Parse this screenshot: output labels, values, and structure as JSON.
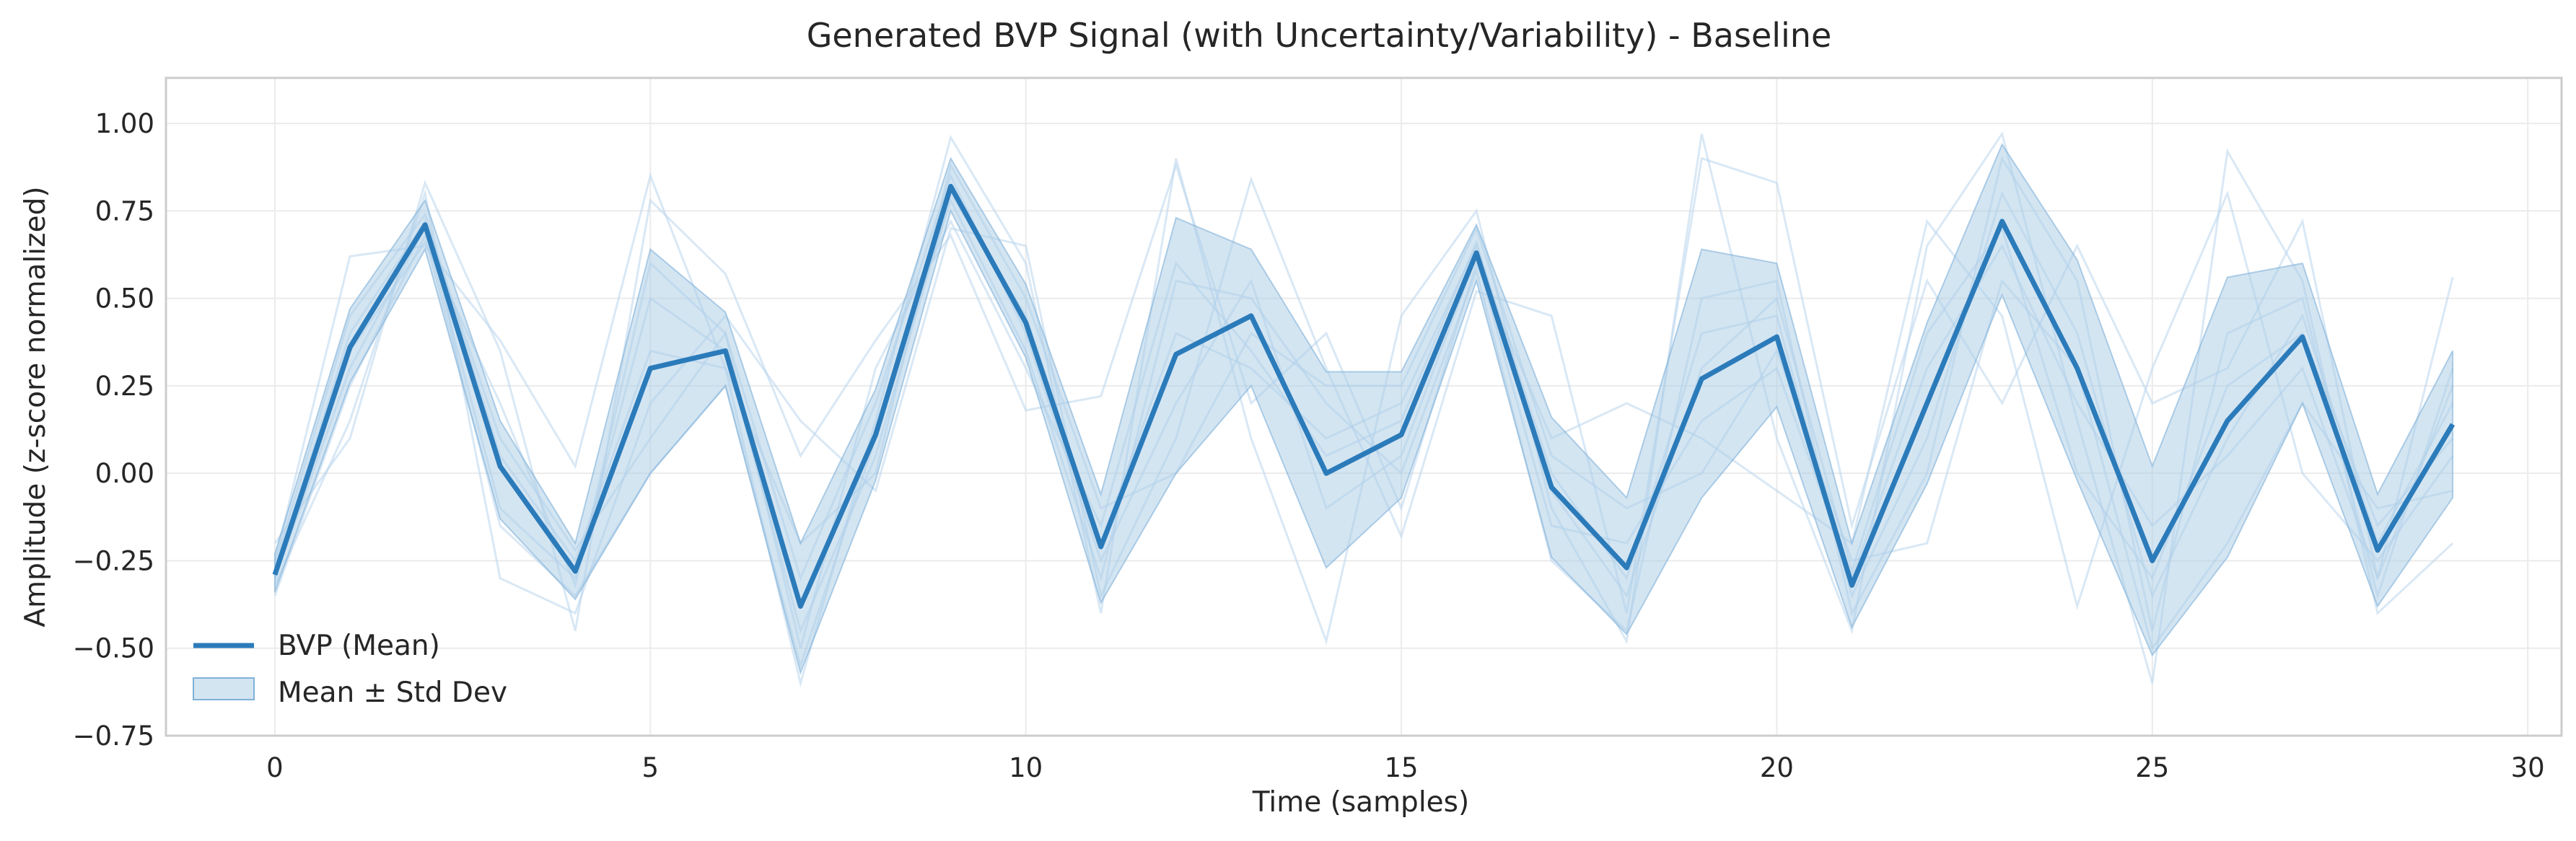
{
  "chart_data": {
    "type": "line",
    "title": "Generated BVP Signal (with Uncertainty/Variability) - Baseline",
    "xlabel": "Time (samples)",
    "ylabel": "Amplitude (z-score normalized)",
    "xlim": [
      -1.45,
      30.45
    ],
    "ylim": [
      -0.75,
      1.13
    ],
    "x_ticks": [
      0,
      5,
      10,
      15,
      20,
      25,
      30
    ],
    "x_tick_labels": [
      "0",
      "5",
      "10",
      "15",
      "20",
      "25",
      "30"
    ],
    "y_ticks": [
      -0.75,
      -0.5,
      -0.25,
      0.0,
      0.25,
      0.5,
      0.75,
      1.0
    ],
    "y_tick_labels": [
      "−0.75",
      "−0.50",
      "−0.25",
      "0.00",
      "0.25",
      "0.50",
      "0.75",
      "1.00"
    ],
    "grid": true,
    "legend_position": "lower-left",
    "colors": {
      "mean": "#2b7bba",
      "band": "#a9cbe6",
      "samples": "#b9d6ec",
      "axis": "#cccccc",
      "grid": "#ebebeb"
    },
    "x": [
      0,
      1,
      2,
      3,
      4,
      5,
      6,
      7,
      8,
      9,
      10,
      11,
      12,
      13,
      14,
      15,
      16,
      17,
      18,
      19,
      20,
      21,
      22,
      23,
      24,
      25,
      26,
      27,
      28,
      29
    ],
    "mean": {
      "name": "BVP (Mean)",
      "values": [
        -0.29,
        0.36,
        0.71,
        0.02,
        -0.28,
        0.3,
        0.35,
        -0.38,
        0.11,
        0.82,
        0.43,
        -0.21,
        0.34,
        0.45,
        0.0,
        0.11,
        0.63,
        -0.04,
        -0.27,
        0.27,
        0.39,
        -0.32,
        0.2,
        0.72,
        0.3,
        -0.25,
        0.15,
        0.39,
        -0.22,
        0.14
      ]
    },
    "band": {
      "name": "Mean ± Std Dev",
      "lower": [
        -0.34,
        0.26,
        0.64,
        -0.13,
        -0.36,
        0.0,
        0.25,
        -0.57,
        -0.02,
        0.75,
        0.33,
        -0.37,
        0.0,
        0.25,
        -0.27,
        -0.07,
        0.55,
        -0.24,
        -0.46,
        -0.07,
        0.19,
        -0.44,
        -0.03,
        0.51,
        -0.02,
        -0.52,
        -0.24,
        0.2,
        -0.38,
        -0.07
      ],
      "upper": [
        -0.23,
        0.47,
        0.78,
        0.15,
        -0.2,
        0.64,
        0.46,
        -0.2,
        0.24,
        0.9,
        0.54,
        -0.06,
        0.73,
        0.64,
        0.29,
        0.29,
        0.71,
        0.16,
        -0.07,
        0.64,
        0.6,
        -0.2,
        0.43,
        0.94,
        0.61,
        0.02,
        0.56,
        0.6,
        -0.06,
        0.35
      ]
    },
    "samples": [
      [
        -0.25,
        0.62,
        0.65,
        0.38,
        0.02,
        0.85,
        0.3,
        -0.6,
        0.15,
        0.96,
        0.6,
        -0.4,
        0.9,
        0.1,
        -0.48,
        0.45,
        0.75,
        -0.1,
        -0.48,
        0.97,
        0.1,
        -0.45,
        0.65,
        0.97,
        0.15,
        -0.6,
        0.92,
        0.55,
        -0.4,
        -0.2
      ],
      [
        -0.32,
        0.15,
        0.8,
        -0.3,
        -0.4,
        0.2,
        0.45,
        0.15,
        -0.05,
        0.7,
        0.65,
        -0.35,
        0.1,
        0.84,
        0.3,
        -0.18,
        0.52,
        0.45,
        -0.4,
        0.9,
        0.83,
        -0.15,
        0.55,
        0.2,
        0.65,
        0.2,
        0.3,
        0.72,
        -0.3,
        0.56
      ],
      [
        -0.2,
        0.1,
        0.83,
        0.35,
        -0.45,
        0.78,
        0.57,
        0.05,
        0.38,
        0.68,
        0.18,
        0.22,
        0.88,
        0.2,
        0.4,
        -0.1,
        0.6,
        0.1,
        0.2,
        0.1,
        -0.05,
        -0.2,
        0.72,
        0.45,
        -0.38,
        0.3,
        0.8,
        0.0,
        -0.25,
        0.05
      ],
      [
        -0.3,
        0.3,
        0.7,
        -0.1,
        -0.3,
        0.5,
        0.35,
        -0.45,
        0.05,
        0.8,
        0.45,
        -0.2,
        0.4,
        0.3,
        0.1,
        0.2,
        0.65,
        0.0,
        -0.3,
        0.4,
        0.45,
        -0.35,
        0.1,
        0.8,
        0.4,
        -0.35,
        0.1,
        0.45,
        -0.2,
        0.2
      ],
      [
        -0.28,
        0.4,
        0.72,
        0.1,
        -0.22,
        0.1,
        0.4,
        -0.3,
        0.2,
        0.85,
        0.4,
        -0.25,
        0.2,
        0.55,
        -0.1,
        0.05,
        0.62,
        -0.15,
        -0.2,
        0.15,
        0.3,
        -0.3,
        0.3,
        0.65,
        0.2,
        -0.15,
        0.05,
        0.3,
        -0.3,
        0.25
      ],
      [
        -0.35,
        0.25,
        0.68,
        -0.15,
        -0.35,
        0.0,
        0.25,
        -0.55,
        0.1,
        0.78,
        0.35,
        -0.3,
        0.55,
        0.5,
        0.2,
        0.0,
        0.58,
        -0.25,
        -0.45,
        0.5,
        0.55,
        -0.4,
        0.0,
        0.9,
        0.55,
        -0.45,
        0.4,
        0.5,
        -0.35,
        0.3
      ],
      [
        -0.26,
        0.45,
        0.74,
        0.05,
        -0.25,
        0.35,
        0.3,
        -0.2,
        0.0,
        0.88,
        0.5,
        -0.1,
        0.0,
        0.4,
        0.25,
        0.25,
        0.7,
        0.05,
        -0.1,
        0.0,
        0.35,
        -0.25,
        -0.2,
        0.55,
        0.3,
        -0.5,
        -0.2,
        0.2,
        -0.1,
        -0.05
      ],
      [
        -0.3,
        0.35,
        0.66,
        0.2,
        -0.32,
        0.6,
        0.4,
        -0.5,
        0.3,
        0.72,
        0.3,
        -0.15,
        0.6,
        0.35,
        0.05,
        0.15,
        0.66,
        -0.05,
        -0.35,
        0.3,
        0.5,
        -0.28,
        0.4,
        0.7,
        0.0,
        -0.3,
        0.25,
        0.4,
        -0.15,
        0.1
      ]
    ]
  }
}
